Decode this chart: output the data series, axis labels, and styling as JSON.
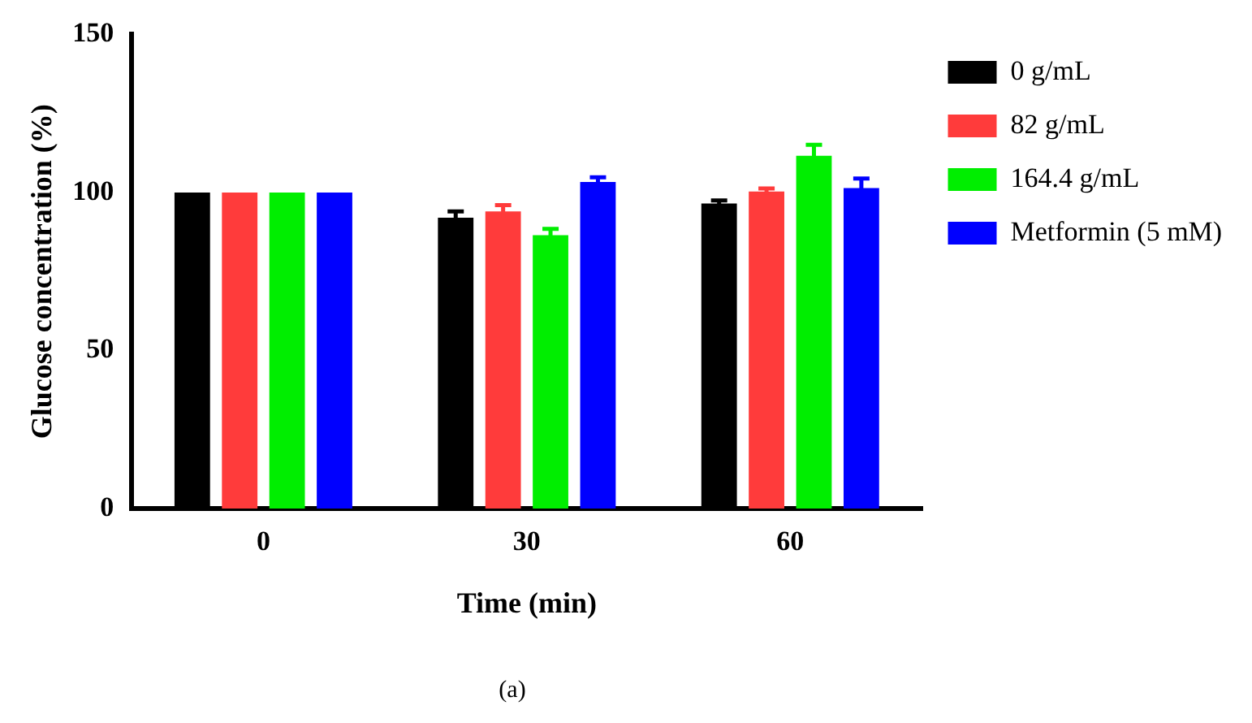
{
  "chart_data": {
    "type": "bar",
    "categories": [
      "0",
      "30",
      "60"
    ],
    "xlabel": "Time (min)",
    "ylabel": "Glucose concentration (%)",
    "ylim": [
      0,
      150
    ],
    "yticks": [
      0,
      50,
      100,
      150
    ],
    "grid": false,
    "legend": "right",
    "annotations": [
      "(a)"
    ],
    "series": [
      {
        "name": "0 g/mL",
        "color": "#000000",
        "values": [
          100,
          92,
          96.5
        ],
        "errors": [
          null,
          2,
          1
        ]
      },
      {
        "name": "82 g/mL",
        "color": "#ff3b3b",
        "values": [
          100,
          94,
          100.3
        ],
        "errors": [
          null,
          2,
          1
        ]
      },
      {
        "name": "164.4 g/mL",
        "color": "#00ee00",
        "values": [
          100,
          86.5,
          111.6
        ],
        "errors": [
          null,
          2,
          3.5
        ]
      },
      {
        "name": "Metformin (5 mM)",
        "color": "#0000ff",
        "values": [
          100,
          103.3,
          101.4
        ],
        "errors": [
          null,
          1.5,
          3
        ]
      }
    ]
  }
}
